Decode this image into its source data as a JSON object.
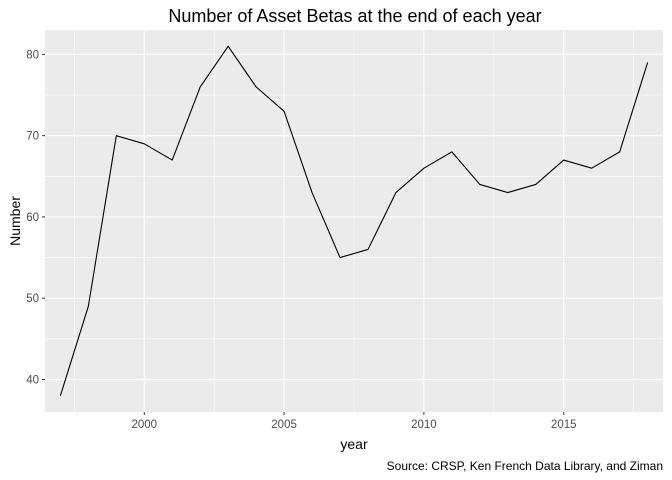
{
  "chart_data": {
    "type": "line",
    "title": "Number of Asset Betas at the end of each year",
    "xlabel": "year",
    "ylabel": "Number",
    "caption": "Source: CRSP, Ken French Data Library, and Ziman",
    "x": [
      1997,
      1998,
      1999,
      2000,
      2001,
      2002,
      2003,
      2004,
      2005,
      2006,
      2007,
      2008,
      2009,
      2010,
      2011,
      2012,
      2013,
      2014,
      2015,
      2016,
      2017,
      2018
    ],
    "series": [
      {
        "values": [
          38,
          49,
          70,
          69,
          67,
          76,
          81,
          76,
          73,
          63,
          55,
          56,
          63,
          66,
          68,
          64,
          63,
          64,
          67,
          66,
          68,
          79
        ]
      }
    ],
    "xlim": [
      1996.45,
      2018.55
    ],
    "ylim": [
      36,
      83
    ],
    "x_ticks": [
      2000,
      2005,
      2010,
      2015
    ],
    "x_minor_ticks": [
      1997.5,
      2002.5,
      2007.5,
      2012.5,
      2017.5
    ],
    "y_ticks": [
      40,
      50,
      60,
      70,
      80
    ],
    "y_minor_ticks": [
      45,
      55,
      65,
      75
    ],
    "grid": true,
    "legend": "none",
    "colors": {
      "panel": "#ebebeb",
      "grid": "#ffffff",
      "line": "#000000",
      "tick_text": "#4d4d4d"
    }
  }
}
